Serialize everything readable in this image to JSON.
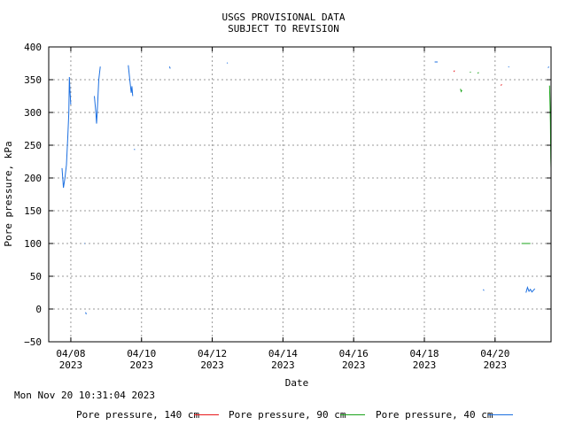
{
  "chart_data": {
    "type": "line",
    "title": "USGS PROVISIONAL DATA",
    "subtitle": "SUBJECT TO REVISION",
    "xlabel": "Date",
    "ylabel": "Pore pressure, kPa",
    "ylim": [
      -50,
      400
    ],
    "yticks": [
      "400",
      "350",
      "300",
      "250",
      "200",
      "150",
      "100",
      "50",
      "0",
      "−50"
    ],
    "ytick_values": [
      400,
      350,
      300,
      250,
      200,
      150,
      100,
      50,
      0,
      -50
    ],
    "xlim": [
      "2023-04-07T09:00",
      "2023-04-21T14:00"
    ],
    "xticks": [
      {
        "date": "2023-04-08",
        "l1": "04/08",
        "l2": "2023"
      },
      {
        "date": "2023-04-10",
        "l1": "04/10",
        "l2": "2023"
      },
      {
        "date": "2023-04-12",
        "l1": "04/12",
        "l2": "2023"
      },
      {
        "date": "2023-04-14",
        "l1": "04/14",
        "l2": "2023"
      },
      {
        "date": "2023-04-16",
        "l1": "04/16",
        "l2": "2023"
      },
      {
        "date": "2023-04-18",
        "l1": "04/18",
        "l2": "2023"
      },
      {
        "date": "2023-04-20",
        "l1": "04/20",
        "l2": "2023"
      }
    ],
    "grid": true,
    "legend_position": "bottom",
    "series": [
      {
        "name": "Pore pressure, 140 cm",
        "color": "#e8191c",
        "segments": [
          [
            [
              "2023-04-18T20:00",
              362
            ],
            [
              "2023-04-18T20:30",
              364
            ]
          ],
          [
            [
              "2023-04-20T04:00",
              341
            ],
            [
              "2023-04-20T04:30",
              343
            ]
          ]
        ]
      },
      {
        "name": "Pore pressure, 90 cm",
        "color": "#1aa31a",
        "segments": [
          [
            [
              "2023-04-19T00:30",
              336
            ],
            [
              "2023-04-19T01:00",
              332
            ],
            [
              "2023-04-19T01:30",
              334
            ]
          ],
          [
            [
              "2023-04-19T07:00",
              361
            ],
            [
              "2023-04-19T07:30",
              362
            ]
          ],
          [
            [
              "2023-04-19T12:00",
              360
            ],
            [
              "2023-04-19T13:00",
              361
            ]
          ],
          [
            [
              "2023-04-20T18:00",
              100
            ],
            [
              "2023-04-21T00:00",
              100
            ]
          ],
          [
            [
              "2023-04-21T13:00",
              341
            ],
            [
              "2023-04-21T13:20",
              310
            ],
            [
              "2023-04-21T13:35",
              285
            ],
            [
              "2023-04-21T13:50",
              230
            ],
            [
              "2023-04-21T14:00",
              215
            ]
          ]
        ]
      },
      {
        "name": "Pore pressure, 40 cm",
        "color": "#1c6fe0",
        "segments": [
          [
            [
              "2023-04-07T18:00",
              215
            ],
            [
              "2023-04-07T19:00",
              185
            ],
            [
              "2023-04-07T20:00",
              200
            ],
            [
              "2023-04-07T21:00",
              220
            ],
            [
              "2023-04-07T22:00",
              265
            ],
            [
              "2023-04-07T22:40",
              300
            ],
            [
              "2023-04-07T23:00",
              354
            ],
            [
              "2023-04-07T23:30",
              330
            ],
            [
              "2023-04-08T00:00",
              312
            ]
          ],
          [
            [
              "2023-04-08T09:00",
              100
            ],
            [
              "2023-04-08T09:30",
              100
            ]
          ],
          [
            [
              "2023-04-08T10:00",
              -5
            ],
            [
              "2023-04-08T10:30",
              -8
            ]
          ],
          [
            [
              "2023-04-08T16:00",
              325
            ],
            [
              "2023-04-08T17:00",
              300
            ],
            [
              "2023-04-08T17:30",
              283
            ],
            [
              "2023-04-08T18:00",
              305
            ],
            [
              "2023-04-08T19:00",
              350
            ],
            [
              "2023-04-08T20:00",
              370
            ]
          ],
          [
            [
              "2023-04-09T15:00",
              372
            ],
            [
              "2023-04-09T16:00",
              350
            ],
            [
              "2023-04-09T17:00",
              330
            ],
            [
              "2023-04-09T17:30",
              340
            ],
            [
              "2023-04-09T18:00",
              325
            ]
          ],
          [
            [
              "2023-04-09T19:00",
              244
            ],
            [
              "2023-04-09T19:30",
              243
            ]
          ],
          [
            [
              "2023-04-10T19:00",
              370
            ],
            [
              "2023-04-10T19:30",
              367
            ]
          ],
          [
            [
              "2023-04-12T10:00",
              376
            ],
            [
              "2023-04-12T10:30",
              375
            ]
          ],
          [
            [
              "2023-04-18T07:00",
              377
            ],
            [
              "2023-04-18T09:00",
              377
            ]
          ],
          [
            [
              "2023-04-19T16:00",
              30
            ],
            [
              "2023-04-19T16:30",
              28
            ]
          ],
          [
            [
              "2023-04-20T09:00",
              370
            ],
            [
              "2023-04-20T09:30",
              369
            ]
          ],
          [
            [
              "2023-04-20T21:00",
              25
            ],
            [
              "2023-04-20T22:00",
              33
            ],
            [
              "2023-04-20T23:00",
              27
            ],
            [
              "2023-04-21T00:00",
              30
            ],
            [
              "2023-04-21T01:00",
              26
            ],
            [
              "2023-04-21T03:00",
              31
            ]
          ],
          [
            [
              "2023-04-21T12:00",
              368
            ],
            [
              "2023-04-21T12:30",
              370
            ]
          ]
        ]
      }
    ]
  },
  "timestamp": "Mon Nov 20 10:31:04 2023",
  "legend": [
    {
      "label": "Pore pressure, 140 cm",
      "color": "#e8191c"
    },
    {
      "label": "Pore pressure, 90 cm",
      "color": "#1aa31a"
    },
    {
      "label": "Pore pressure, 40 cm",
      "color": "#1c6fe0"
    }
  ]
}
